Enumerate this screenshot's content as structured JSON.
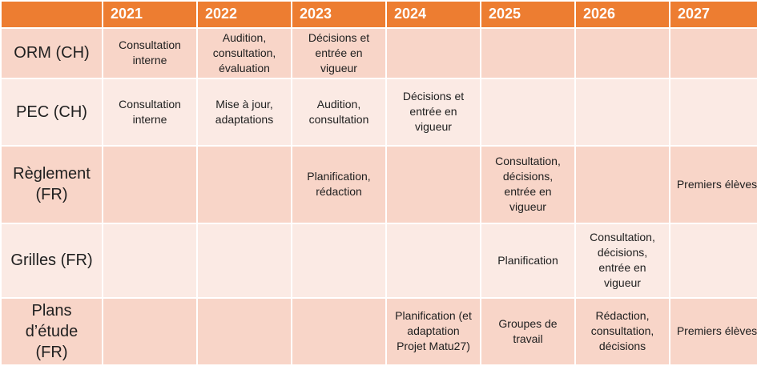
{
  "table": {
    "title_semantic": "project-timeline-table",
    "header": {
      "corner": "",
      "years": [
        "2021",
        "2022",
        "2023",
        "2024",
        "2025",
        "2026",
        "2027"
      ]
    },
    "rows": [
      {
        "label": "ORM (CH)",
        "cells": [
          "Consultation interne",
          "Audition, consultation, évaluation",
          "Décisions et entrée en vigueur",
          "",
          "",
          "",
          ""
        ]
      },
      {
        "label": "PEC (CH)",
        "cells": [
          "Consultation interne",
          "Mise à jour, adaptations",
          "Audition, consultation",
          "Décisions et entrée en vigueur",
          "",
          "",
          ""
        ]
      },
      {
        "label": "Règlement (FR)",
        "cells": [
          "",
          "",
          "Planification, rédaction",
          "",
          "Consultation, décisions, entrée en vigueur",
          "",
          "Premiers élèves"
        ]
      },
      {
        "label": "Grilles (FR)",
        "cells": [
          "",
          "",
          "",
          "",
          "Planification",
          "Consultation, décisions, entrée en vigueur",
          ""
        ]
      },
      {
        "label": "Plans d’étude (FR)",
        "cells": [
          "",
          "",
          "",
          "Planification (et adaptation Projet Matu27)",
          "Groupes de travail",
          "Rédaction, consultation, décisions",
          "Premiers élèves"
        ]
      }
    ],
    "colors": {
      "header_bg": "#ED7D31",
      "header_text": "#FFFFFF",
      "row_odd_bg": "#F8D5C8",
      "row_even_bg": "#FBEAE4",
      "cell_text": "#202020",
      "grid": "#FFFFFF"
    }
  }
}
